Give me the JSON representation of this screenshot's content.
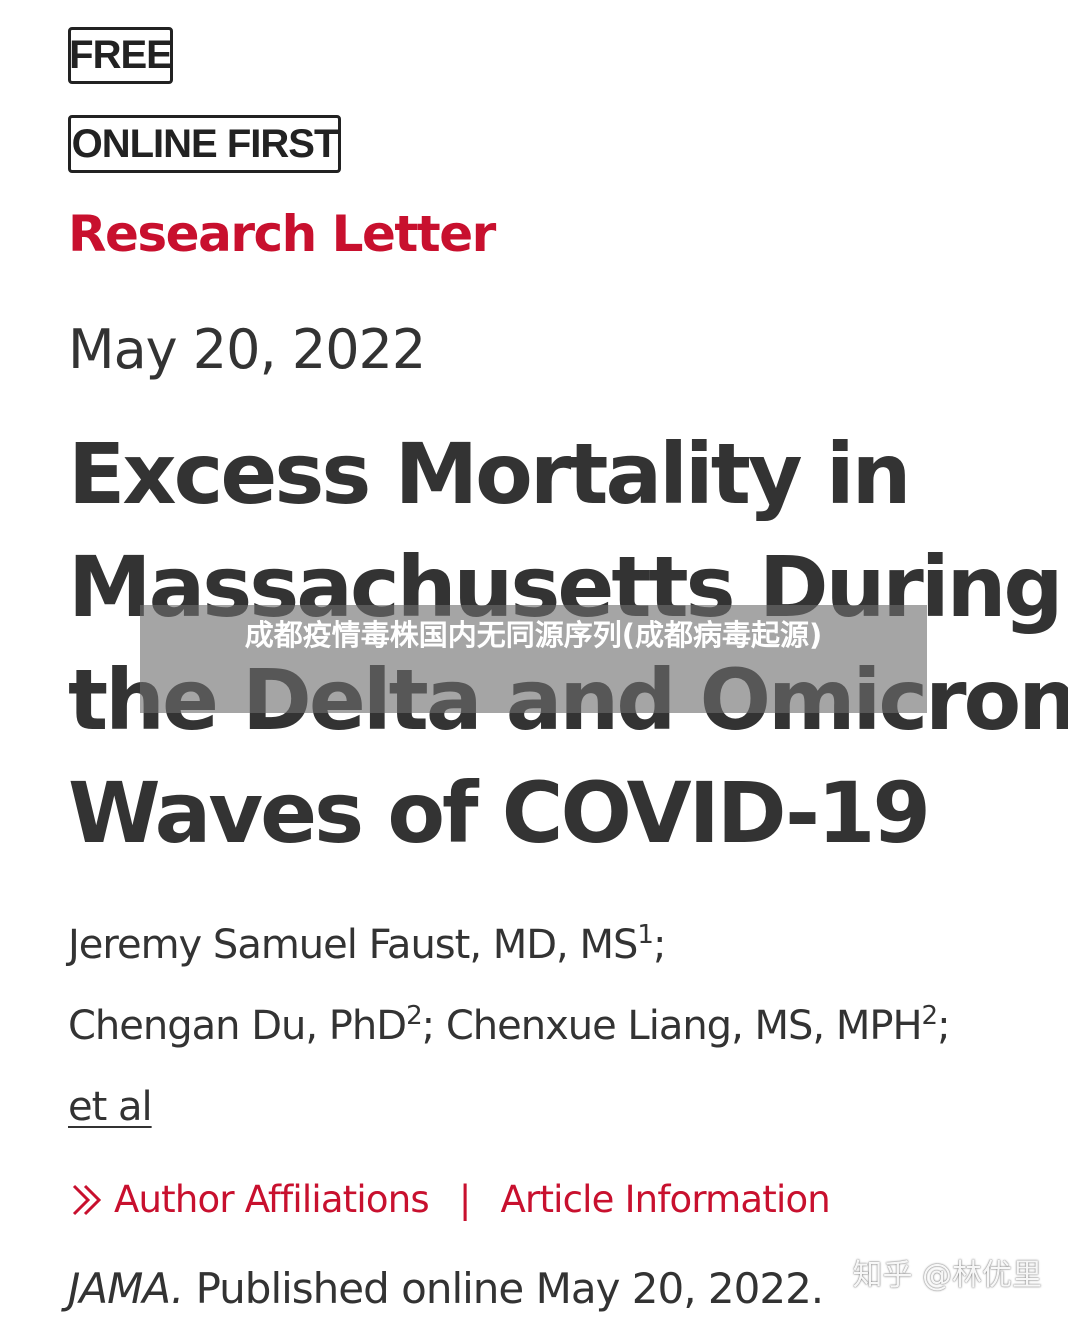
{
  "badges": {
    "free": "FREE",
    "online_first": "ONLINE FIRST"
  },
  "article_type": "Research Letter",
  "date": "May 20, 2022",
  "title_lines": [
    "Excess Mortality in",
    "Massachusetts During",
    "the Delta and Omicron",
    "Waves of COVID-19"
  ],
  "authors": {
    "line1": {
      "name": "Jeremy Samuel Faust, MD, MS",
      "sup": "1",
      "sep": ";"
    },
    "line2": {
      "name_a": "Chengan Du, PhD",
      "sup_a": "2",
      "sep_a": "; ",
      "name_b": "Chenxue Liang, MS, MPH",
      "sup_b": "2",
      "sep_b": ";"
    },
    "et_al": "et al"
  },
  "links": {
    "author_affiliations": "Author Affiliations",
    "separator": "|",
    "article_information": "Article Information",
    "chevron_icon": "double-chevron-right-icon"
  },
  "citation": {
    "journal": "JAMA.",
    "text": " Published online May 20, 2022."
  },
  "overlay_caption": "成都疫情毒株国内无同源序列(成都病毒起源)",
  "watermark": "知乎 @林优里",
  "colors": {
    "accent": "#c8102e",
    "text": "#333333",
    "badge_border": "#222222"
  }
}
